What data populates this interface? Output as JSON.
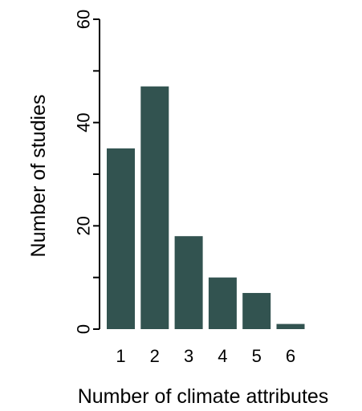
{
  "colors": {
    "bar": "#325350",
    "axis": "#000000",
    "background": "#ffffff"
  },
  "chart_data": {
    "type": "bar",
    "title": "",
    "xlabel": "Number of climate attributes",
    "ylabel": "Number of studies",
    "categories": [
      "1",
      "2",
      "3",
      "4",
      "5",
      "6"
    ],
    "values": [
      35,
      47,
      18,
      10,
      7,
      1
    ],
    "ylim": [
      0,
      60
    ],
    "yticks": [
      0,
      20,
      40,
      60
    ],
    "grid": false,
    "legend": "none"
  }
}
